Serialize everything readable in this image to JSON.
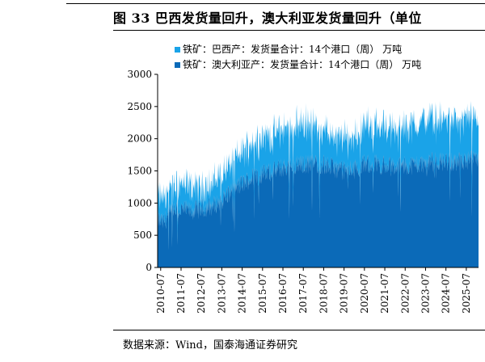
{
  "figure": {
    "title": "图 33  巴西发货量回升，澳大利亚发货量回升（单位",
    "source": "数据来源：Wind，国泰海通证券研究"
  },
  "chart_data": {
    "type": "area",
    "stacked": true,
    "title": "巴西发货量回升，澳大利亚发货量回升",
    "xlabel": "",
    "ylabel": "",
    "ylim": [
      0,
      3000
    ],
    "yticks": [
      0,
      500,
      1000,
      1500,
      2000,
      2500,
      3000
    ],
    "ytick_labels": [
      "0",
      "500",
      "1000",
      "1500",
      "2000",
      "2500",
      "3000"
    ],
    "xlim": [
      2010.35,
      2026.1
    ],
    "xtick_labels": [
      "2010-07",
      "2011-07",
      "2012-07",
      "2013-07",
      "2014-07",
      "2015-07",
      "2016-07",
      "2017-07",
      "2018-07",
      "2019-07",
      "2020-07",
      "2021-07",
      "2022-07",
      "2023-07",
      "2024-07",
      "2025-07"
    ],
    "xtick_values": [
      2010.5,
      2011.5,
      2012.5,
      2013.5,
      2014.5,
      2015.5,
      2016.5,
      2017.5,
      2018.5,
      2019.5,
      2020.5,
      2021.5,
      2022.5,
      2023.5,
      2024.5,
      2025.5
    ],
    "colors": {
      "brazil": "#1aa3e8",
      "australia": "#0b6ab8"
    },
    "legend": [
      "铁矿：巴西产：发货量合计：14个港口（周）  万吨",
      "铁矿：澳大利亚产：发货量合计：14个港口（周）  万吨"
    ],
    "legend_position": "top-left",
    "series": [
      {
        "name": "铁矿：澳大利亚产：发货量合计：14个港口（周）  万吨",
        "x": [
          2010.35,
          2010.6,
          2011.0,
          2011.5,
          2012.0,
          2012.5,
          2013.0,
          2013.5,
          2014.0,
          2014.5,
          2015.0,
          2015.5,
          2016.0,
          2016.5,
          2017.0,
          2017.5,
          2018.0,
          2018.5,
          2019.0,
          2019.5,
          2020.0,
          2020.5,
          2021.0,
          2021.5,
          2022.0,
          2022.5,
          2023.0,
          2023.5,
          2024.0,
          2024.5,
          2025.0,
          2025.5,
          2026.1
        ],
        "values": [
          750,
          700,
          850,
          900,
          880,
          920,
          950,
          1050,
          1200,
          1300,
          1400,
          1450,
          1500,
          1550,
          1580,
          1600,
          1620,
          1600,
          1550,
          1500,
          1520,
          1600,
          1620,
          1580,
          1560,
          1580,
          1600,
          1620,
          1650,
          1640,
          1640,
          1650,
          1680
        ]
      },
      {
        "name": "铁矿：巴西产：发货量合计：14个港口（周）  万吨",
        "x": [
          2010.35,
          2010.6,
          2011.0,
          2011.5,
          2012.0,
          2012.5,
          2013.0,
          2013.5,
          2014.0,
          2014.5,
          2015.0,
          2015.5,
          2016.0,
          2016.5,
          2017.0,
          2017.5,
          2018.0,
          2018.5,
          2019.0,
          2019.5,
          2020.0,
          2020.5,
          2021.0,
          2021.5,
          2022.0,
          2022.5,
          2023.0,
          2023.5,
          2024.0,
          2024.5,
          2025.0,
          2025.5,
          2026.1
        ],
        "values": [
          350,
          400,
          380,
          420,
          360,
          320,
          350,
          400,
          450,
          500,
          550,
          600,
          560,
          600,
          620,
          650,
          600,
          550,
          450,
          500,
          500,
          600,
          600,
          620,
          550,
          600,
          620,
          680,
          650,
          660,
          640,
          680,
          500
        ]
      }
    ]
  }
}
